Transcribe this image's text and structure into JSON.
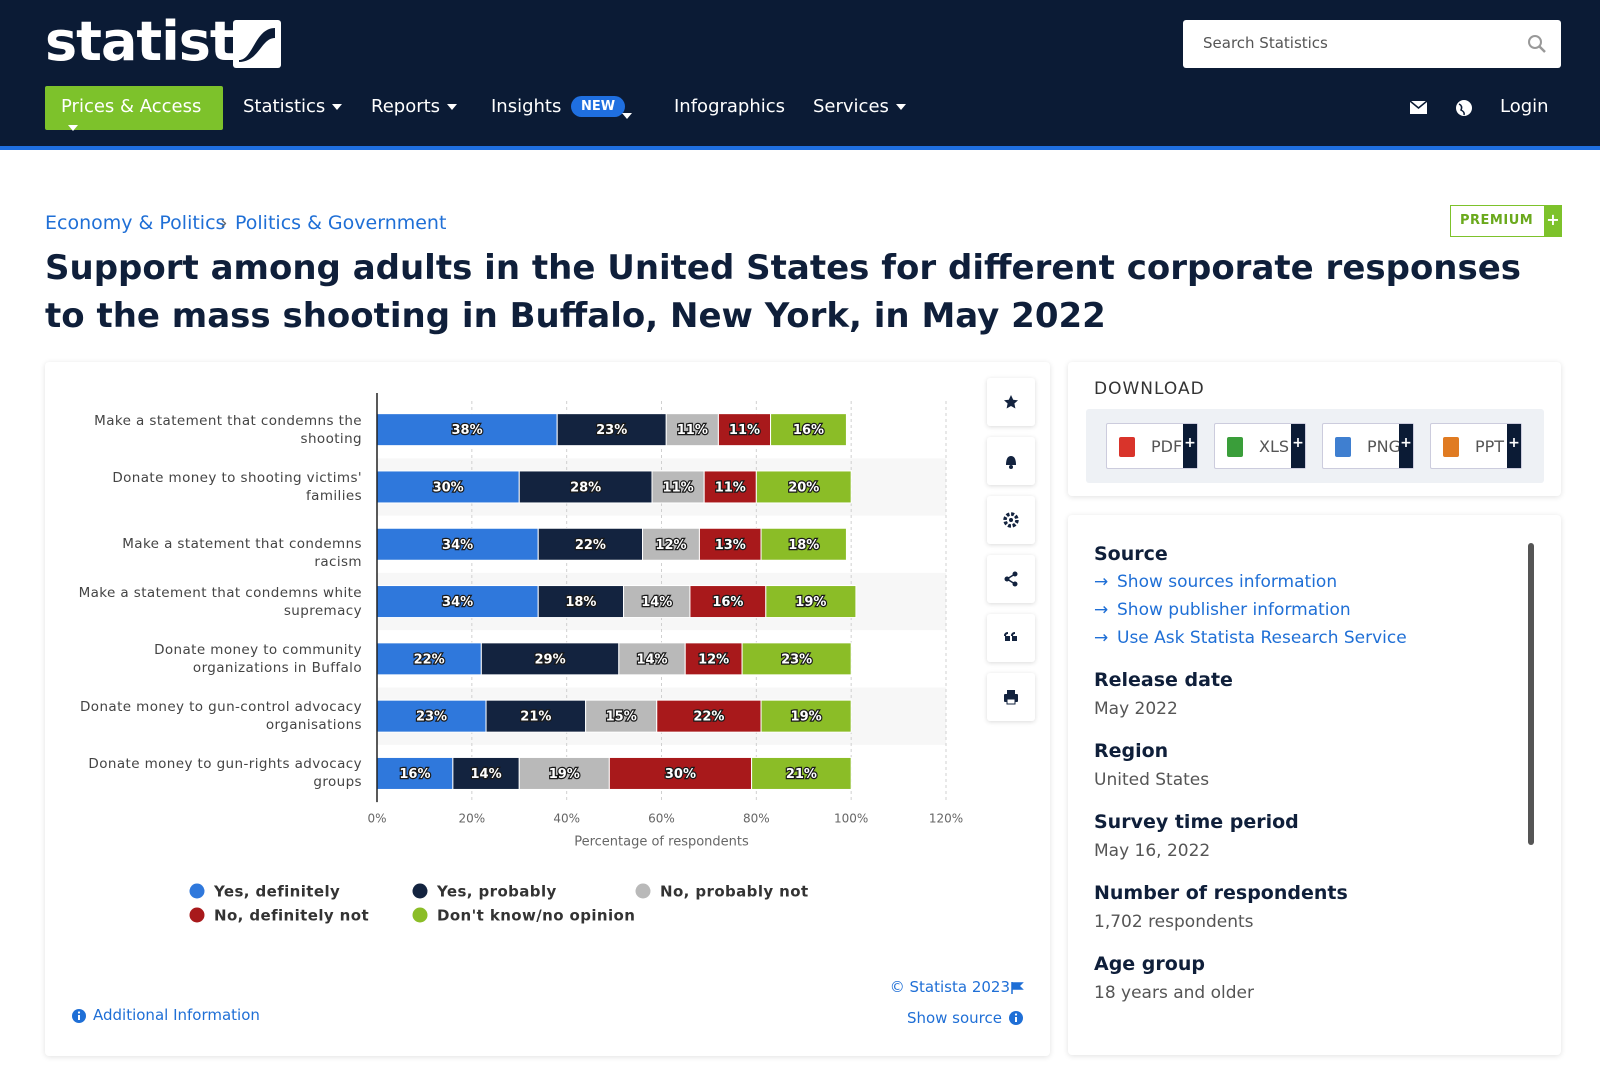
{
  "header": {
    "logo": "statista",
    "search_placeholder": "Search Statistics",
    "nav": [
      "Prices & Access",
      "Statistics",
      "Reports",
      "Insights",
      "Infographics",
      "Services"
    ],
    "badge": "NEW",
    "login": "Login"
  },
  "breadcrumb": [
    "Economy & Politics",
    "Politics & Government"
  ],
  "premium": "PREMIUM",
  "title": "Support among adults in the United States for different corporate responses to the mass shooting in Buffalo, New York, in May 2022",
  "chart_data": {
    "type": "bar",
    "orientation": "horizontal",
    "stacked": true,
    "categories": [
      "Make a statement that condemns the shooting",
      "Donate money to shooting victims' families",
      "Make a statement that condemns racism",
      "Make a statement that condemns white supremacy",
      "Donate money to community organizations in Buffalo",
      "Donate money to gun-control advocacy organisations",
      "Donate money to gun-rights advocacy groups"
    ],
    "series": [
      {
        "name": "Yes, definitely",
        "color": "#2f78dc",
        "values": [
          38,
          30,
          34,
          34,
          22,
          23,
          16
        ],
        "value_labels": [
          "38%",
          "30%",
          "34%",
          "34%",
          "22%",
          "23%",
          "16%"
        ]
      },
      {
        "name": "Yes, probably",
        "color": "#13233f",
        "values": [
          23,
          28,
          22,
          18,
          29,
          21,
          14
        ],
        "value_labels": [
          "23%",
          "28%",
          "22%",
          "18%",
          "29%",
          "21%",
          "14%"
        ]
      },
      {
        "name": "No, probably not",
        "color": "#b9b9b9",
        "values": [
          11,
          11,
          12,
          14,
          14,
          15,
          19
        ],
        "value_labels": [
          "11%",
          "11%",
          "12%",
          "14%",
          "14%",
          "15%",
          "19%"
        ]
      },
      {
        "name": "No, definitely not",
        "color": "#a8191b",
        "values": [
          11,
          11,
          13,
          16,
          12,
          22,
          30
        ],
        "value_labels": [
          "11%",
          "11%",
          "13%",
          "16%",
          "12%",
          "22%",
          "30%"
        ]
      },
      {
        "name": "Don't know/no opinion",
        "color": "#8bbd27",
        "values": [
          16,
          20,
          18,
          19,
          23,
          19,
          21
        ],
        "value_labels": [
          "16%",
          "20%",
          "18%",
          "19%",
          "23%",
          "19%",
          "21%"
        ]
      }
    ],
    "xlabel": "Percentage of respondents",
    "xlim": [
      0,
      120
    ],
    "xticks": [
      {
        "value": 0,
        "label": "0%"
      },
      {
        "value": 20,
        "label": "20%"
      },
      {
        "value": 40,
        "label": "40%"
      },
      {
        "value": 60,
        "label": "60%"
      },
      {
        "value": 80,
        "label": "80%"
      },
      {
        "value": 100,
        "label": "100%"
      },
      {
        "value": 120,
        "label": "120%"
      }
    ],
    "grid": true
  },
  "chart_footer": {
    "copyright": "© Statista 2023",
    "show_source": "Show source",
    "additional": "Additional Information"
  },
  "download": {
    "heading": "DOWNLOAD",
    "formats": [
      "PDF",
      "XLS",
      "PNG",
      "PPT"
    ]
  },
  "info": {
    "source_heading": "Source",
    "source_links": [
      "Show sources information",
      "Show publisher information",
      "Use Ask Statista Research Service"
    ],
    "fields": [
      {
        "label": "Release date",
        "value": "May 2022"
      },
      {
        "label": "Region",
        "value": "United States"
      },
      {
        "label": "Survey time period",
        "value": "May 16, 2022"
      },
      {
        "label": "Number of respondents",
        "value": "1,702 respondents"
      },
      {
        "label": "Age group",
        "value": "18 years and older"
      }
    ]
  }
}
